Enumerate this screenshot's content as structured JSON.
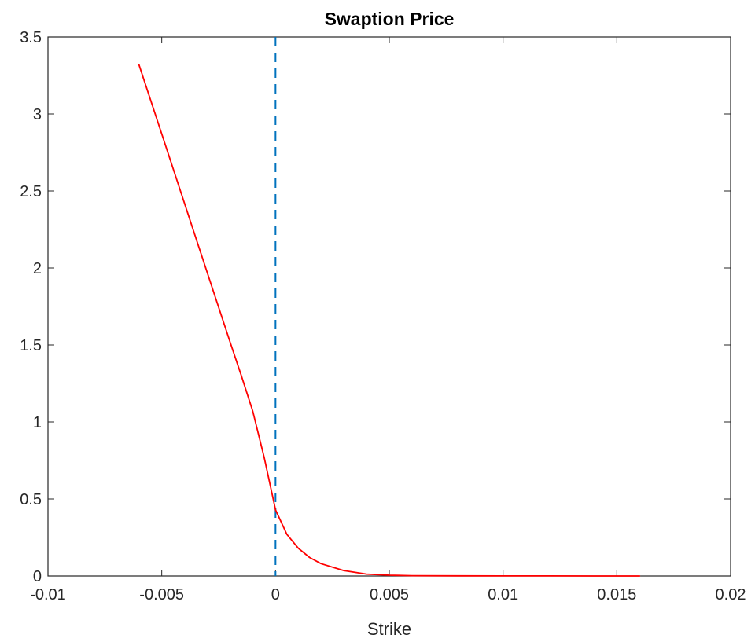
{
  "chart_data": {
    "type": "line",
    "title": "Swaption Price",
    "xlabel": "Strike",
    "ylabel": "",
    "xlim": [
      -0.01,
      0.02
    ],
    "ylim": [
      0,
      3.5
    ],
    "xticks": [
      -0.01,
      -0.005,
      0,
      0.005,
      0.01,
      0.015,
      0.02
    ],
    "xtick_labels": [
      "-0.01",
      "-0.005",
      "0",
      "0.005",
      "0.01",
      "0.015",
      "0.02"
    ],
    "yticks": [
      0,
      0.5,
      1,
      1.5,
      2,
      2.5,
      3,
      3.5
    ],
    "ytick_labels": [
      "0",
      "0.5",
      "1",
      "1.5",
      "2",
      "2.5",
      "3",
      "3.5"
    ],
    "grid": false,
    "series": [
      {
        "color": "#ff0000",
        "style": "solid",
        "x": [
          -0.006,
          -0.005,
          -0.004,
          -0.003,
          -0.002,
          -0.0015,
          -0.001,
          -0.0005,
          0,
          0.0005,
          0.001,
          0.0015,
          0.002,
          0.003,
          0.004,
          0.005,
          0.006,
          0.008,
          0.01,
          0.012,
          0.014,
          0.016
        ],
        "y": [
          3.32,
          2.87,
          2.42,
          1.97,
          1.52,
          1.3,
          1.07,
          0.77,
          0.43,
          0.27,
          0.18,
          0.12,
          0.08,
          0.035,
          0.012,
          0.005,
          0.002,
          0.001,
          0.0005,
          0.0003,
          0.0002,
          0.0001
        ]
      }
    ],
    "vertical_lines": [
      {
        "x": 0,
        "color": "#0072bd",
        "style": "dashed"
      }
    ]
  }
}
